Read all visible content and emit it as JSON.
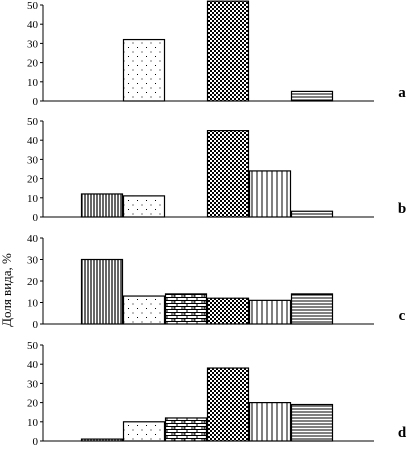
{
  "ylabel": "Доля вида, %",
  "chart_data": [
    {
      "type": "bar",
      "panel_label": "a",
      "ylim": [
        0,
        50
      ],
      "yticks": [
        "0",
        "10",
        "20",
        "30",
        "40",
        "50"
      ],
      "values": [
        0,
        32,
        0,
        52,
        0,
        5
      ],
      "patterns": [
        "vlines",
        "dots",
        "bricks",
        "checker",
        "vlines-wide",
        "hlines"
      ]
    },
    {
      "type": "bar",
      "panel_label": "b",
      "ylim": [
        0,
        50
      ],
      "yticks": [
        "0",
        "10",
        "20",
        "30",
        "40",
        "50"
      ],
      "values": [
        12,
        11,
        0,
        45,
        24,
        3
      ],
      "patterns": [
        "vlines",
        "dots",
        "bricks",
        "checker",
        "vlines-wide",
        "hlines"
      ]
    },
    {
      "type": "bar",
      "panel_label": "c",
      "ylim": [
        0,
        40
      ],
      "yticks": [
        "0",
        "10",
        "20",
        "30",
        "40"
      ],
      "values": [
        30,
        13,
        14,
        12,
        11,
        14
      ],
      "patterns": [
        "vlines",
        "dots",
        "bricks",
        "checker",
        "vlines-wide",
        "hlines"
      ]
    },
    {
      "type": "bar",
      "panel_label": "d",
      "ylim": [
        0,
        50
      ],
      "yticks": [
        "0",
        "10",
        "20",
        "30",
        "40",
        "50"
      ],
      "values": [
        1,
        10,
        12,
        38,
        20,
        19
      ],
      "patterns": [
        "vlines",
        "dots",
        "bricks",
        "checker",
        "vlines-wide",
        "hlines"
      ]
    }
  ]
}
